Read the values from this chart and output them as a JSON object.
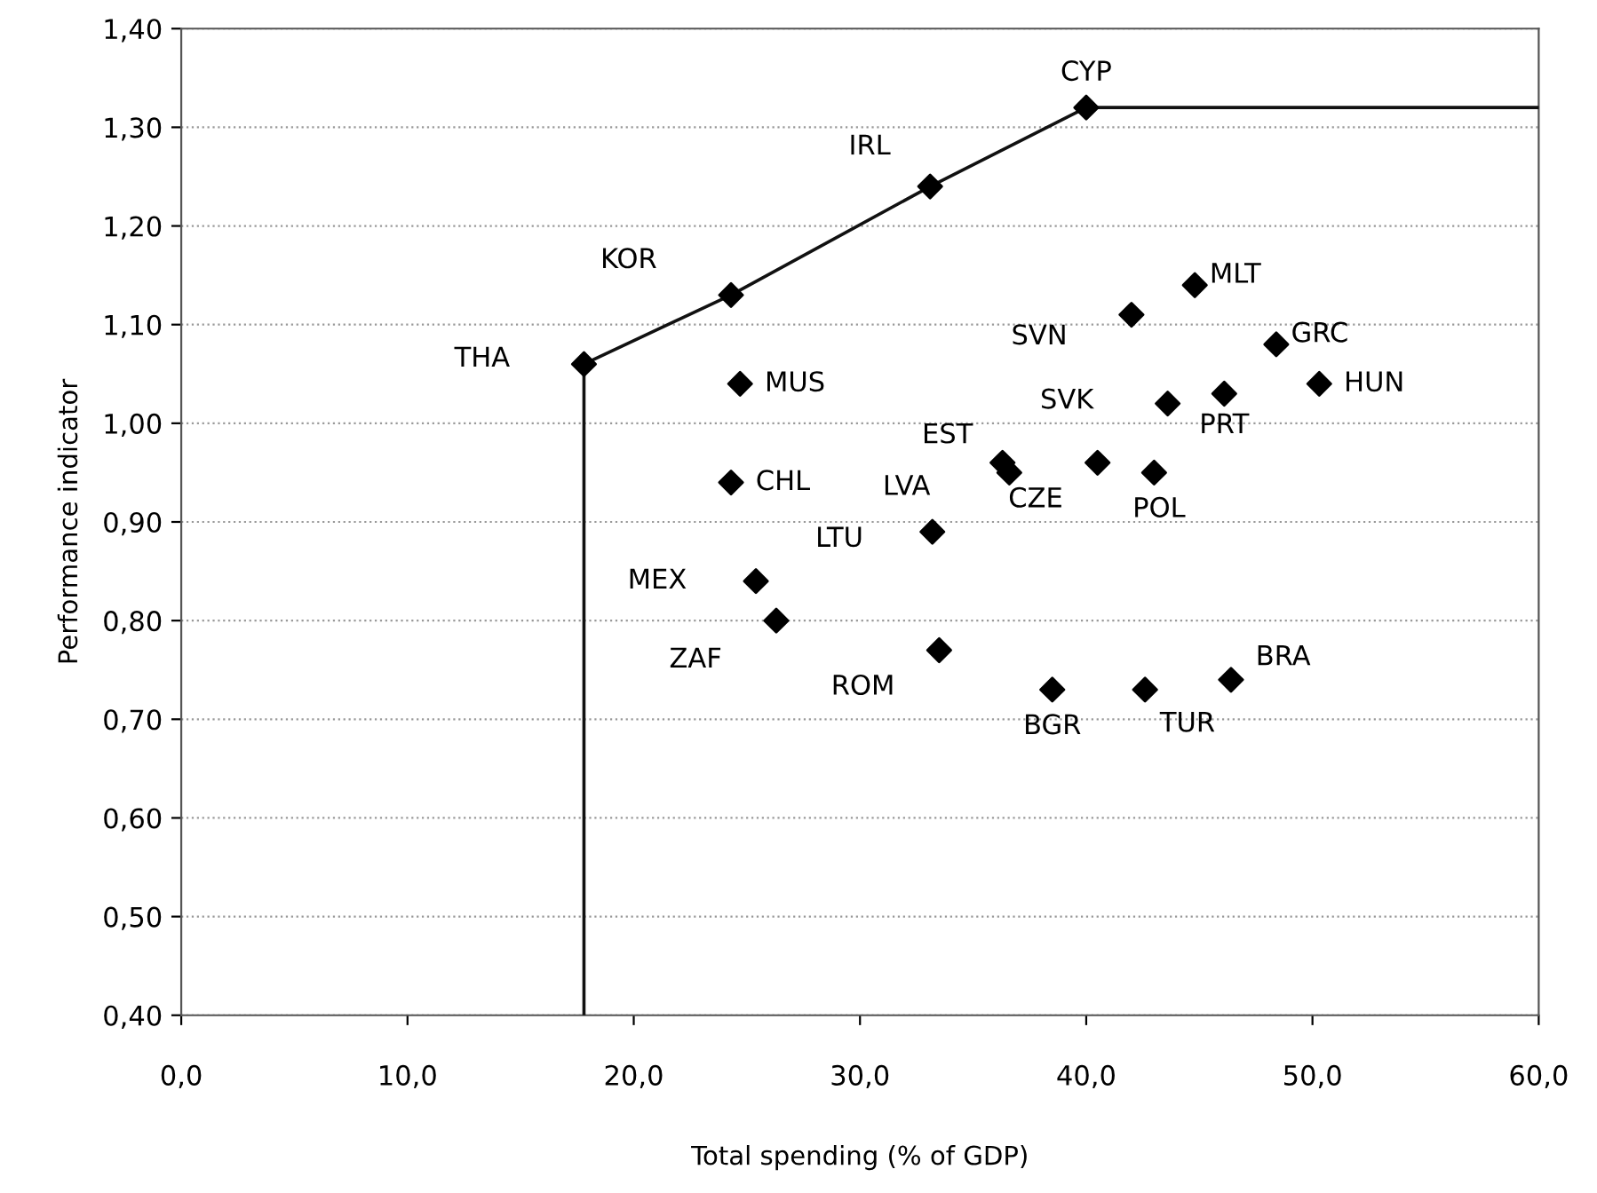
{
  "chart_data": {
    "type": "scatter",
    "xlabel": "Total spending (% of GDP)",
    "ylabel": "Performance indicator",
    "xlim": [
      0,
      60
    ],
    "ylim": [
      0.4,
      1.4
    ],
    "xticks": [
      {
        "value": 0,
        "label": "0,0"
      },
      {
        "value": 10,
        "label": "10,0"
      },
      {
        "value": 20,
        "label": "20,0"
      },
      {
        "value": 30,
        "label": "30,0"
      },
      {
        "value": 40,
        "label": "40,0"
      },
      {
        "value": 50,
        "label": "50,0"
      },
      {
        "value": 60,
        "label": "60,0"
      }
    ],
    "yticks": [
      {
        "value": 0.4,
        "label": "0,40"
      },
      {
        "value": 0.5,
        "label": "0,50"
      },
      {
        "value": 0.6,
        "label": "0,60"
      },
      {
        "value": 0.7,
        "label": "0,70"
      },
      {
        "value": 0.8,
        "label": "0,80"
      },
      {
        "value": 0.9,
        "label": "0,90"
      },
      {
        "value": 1.0,
        "label": "1,00"
      },
      {
        "value": 1.1,
        "label": "1,10"
      },
      {
        "value": 1.2,
        "label": "1,20"
      },
      {
        "value": 1.3,
        "label": "1,30"
      },
      {
        "value": 1.4,
        "label": "1,40"
      }
    ],
    "grid": "y",
    "series": [
      {
        "type": "line",
        "color": "#111111",
        "marker": "none",
        "line_style": "solid",
        "x": [
          17.8,
          17.8,
          24.3,
          33.1,
          40.0,
          60
        ],
        "values": [
          0.4,
          1.06,
          1.13,
          1.24,
          1.32,
          1.32
        ]
      },
      {
        "color": "#000000",
        "marker": "diamond",
        "x": [
          17.8,
          24.3,
          33.1,
          40.0,
          24.7,
          24.3,
          25.4,
          26.3,
          44.8,
          42.0,
          48.4,
          50.3,
          43.6,
          46.1,
          36.3,
          36.6,
          40.5,
          43.0,
          33.2,
          33.5,
          38.5,
          42.6,
          46.4
        ],
        "values": [
          1.06,
          1.13,
          1.24,
          1.32,
          1.04,
          0.94,
          0.84,
          0.8,
          1.14,
          1.11,
          1.08,
          1.04,
          1.02,
          1.03,
          0.96,
          0.95,
          0.96,
          0.95,
          0.89,
          0.77,
          0.73,
          0.73,
          0.74
        ]
      }
    ],
    "annotations": [
      {
        "text": "THA",
        "x": 17.8,
        "y": 1.06
      },
      {
        "text": "KOR",
        "x": 24.3,
        "y": 1.13
      },
      {
        "text": "IRL",
        "x": 33.1,
        "y": 1.24
      },
      {
        "text": "CYP",
        "x": 40.0,
        "y": 1.32
      },
      {
        "text": "MUS",
        "x": 24.7,
        "y": 1.04
      },
      {
        "text": "CHL",
        "x": 24.3,
        "y": 0.94
      },
      {
        "text": "MEX",
        "x": 25.4,
        "y": 0.84
      },
      {
        "text": "ZAF",
        "x": 26.3,
        "y": 0.8
      },
      {
        "text": "MLT",
        "x": 44.8,
        "y": 1.14
      },
      {
        "text": "SVN",
        "x": 42.0,
        "y": 1.11
      },
      {
        "text": "GRC",
        "x": 48.4,
        "y": 1.08
      },
      {
        "text": "HUN",
        "x": 50.3,
        "y": 1.04
      },
      {
        "text": "SVK",
        "x": 43.6,
        "y": 1.02
      },
      {
        "text": "PRT",
        "x": 46.1,
        "y": 1.03
      },
      {
        "text": "EST",
        "x": 36.3,
        "y": 0.96
      },
      {
        "text": "LVA",
        "x": 36.6,
        "y": 0.95
      },
      {
        "text": "CZE",
        "x": 40.5,
        "y": 0.96
      },
      {
        "text": "POL",
        "x": 43.0,
        "y": 0.95
      },
      {
        "text": "LTU",
        "x": 33.2,
        "y": 0.89
      },
      {
        "text": "ROM",
        "x": 33.5,
        "y": 0.77
      },
      {
        "text": "BGR",
        "x": 38.5,
        "y": 0.73
      },
      {
        "text": "TUR",
        "x": 42.6,
        "y": 0.73
      },
      {
        "text": "BRA",
        "x": 46.4,
        "y": 0.74
      }
    ]
  }
}
